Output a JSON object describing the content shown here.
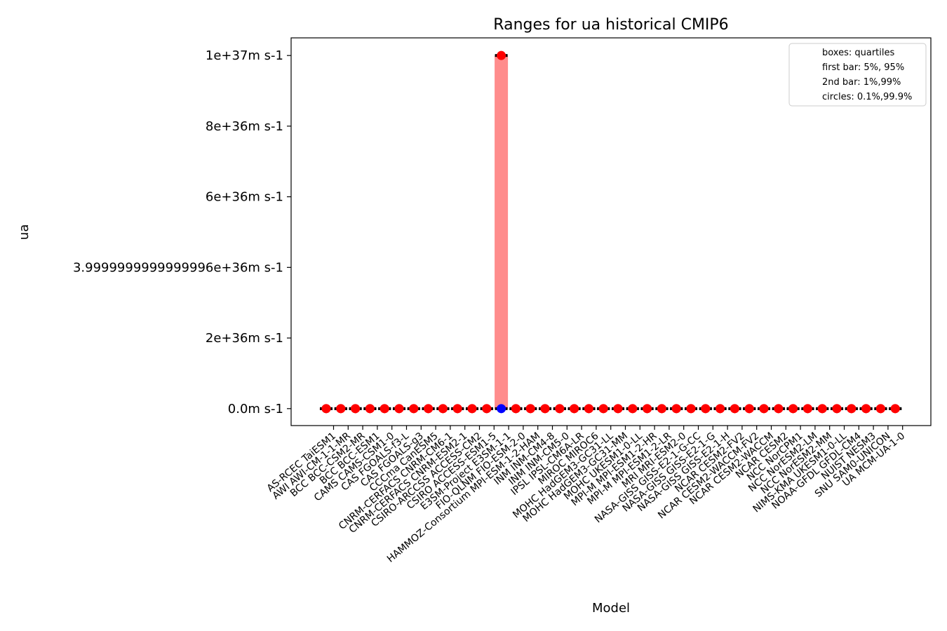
{
  "chart_data": {
    "type": "box",
    "title": "Ranges for ua historical CMIP6",
    "xlabel": "Model",
    "ylabel": "ua",
    "ylim": [
      -4.8e+35,
      1.05e+37
    ],
    "yticks": [
      {
        "value": 0,
        "label": "0.0m s-1"
      },
      {
        "value": 2e+36,
        "label": "2e+36m s-1"
      },
      {
        "value": 3.9999999999999996e+36,
        "label": "3.9999999999999996e+36m s-1"
      },
      {
        "value": 6e+36,
        "label": "6e+36m s-1"
      },
      {
        "value": 8e+36,
        "label": "8e+36m s-1"
      },
      {
        "value": 1e+37,
        "label": "1e+37m s-1"
      }
    ],
    "legend": {
      "placement": "top-right",
      "entries": [
        "boxes: quartiles",
        "first bar: 5%, 95%",
        "2nd bar: 1%,99%",
        "circles: 0.1%,99.9%"
      ]
    },
    "colors": {
      "box": "#ff8c8c",
      "circle": "#ff0000",
      "outlier_low": "#0000ff",
      "bar": "#000000"
    },
    "categories": [
      "AS-RCEC TaiESM1",
      "AWI AWI-CM-1-1-MR",
      "BCC BCC-CSM2-MR",
      "BCC BCC-ESM1",
      "CAMS CAMS-CSM1-0",
      "CAS FGOALS-f3-L",
      "CAS FGOALS-g3",
      "CCCma CanESM5",
      "CNRM-CERFACS CNRM-CM6-1",
      "CNRM-CERFACS CNRM-ESM2-1",
      "CSIRO-ARCCSS ACCESS-CM2",
      "CSIRO ACCESS-ESM1-5",
      "E3SM-Project E3SM-1-1",
      "FIO-QLNM FIO-ESM-2-0",
      "HAMMOZ-Consortium MPI-ESM-1-2-HAM",
      "INM INM-CM4-8",
      "INM INM-CM5-0",
      "IPSL IPSL-CM6A-LR",
      "MIROC MIROC6",
      "MOHC HadGEM3-GC31-LL",
      "MOHC HadGEM3-GC31-MM",
      "MOHC UKESM1-0-LL",
      "MPI-M MPI-ESM1-2-HR",
      "MPI-M MPI-ESM1-2-LR",
      "MRI MRI-ESM2-0",
      "NASA-GISS GISS-E2-1-G-CC",
      "NASA-GISS GISS-E2-1-G",
      "NASA-GISS GISS-E2-1-H",
      "NCAR CESM2-FV2",
      "NCAR CESM2-WACCM-FV2",
      "NCAR CESM2-WACCM",
      "NCAR CESM2",
      "NCC NorCPM1",
      "NCC NorESM2-LM",
      "NCC NorESM2-MM",
      "NIMS-KMA UKESM1-0-LL",
      "NOAA-GFDL GFDL-CM4",
      "NUIST NESM3",
      "SNU SAM0-UNICON",
      "UA MCM-UA-1-0"
    ],
    "series": [
      {
        "category": "AS-RCEC TaiESM1",
        "q1": 0,
        "q3": 0,
        "circle_low": 0,
        "circle_high": 0
      },
      {
        "category": "AWI AWI-CM-1-1-MR",
        "q1": 0,
        "q3": 0,
        "circle_low": 0,
        "circle_high": 0
      },
      {
        "category": "BCC BCC-CSM2-MR",
        "q1": 0,
        "q3": 0,
        "circle_low": 0,
        "circle_high": 0
      },
      {
        "category": "BCC BCC-ESM1",
        "q1": 0,
        "q3": 0,
        "circle_low": 0,
        "circle_high": 0
      },
      {
        "category": "CAMS CAMS-CSM1-0",
        "q1": 0,
        "q3": 0,
        "circle_low": 0,
        "circle_high": 0
      },
      {
        "category": "CAS FGOALS-f3-L",
        "q1": 0,
        "q3": 0,
        "circle_low": 0,
        "circle_high": 0
      },
      {
        "category": "CAS FGOALS-g3",
        "q1": 0,
        "q3": 0,
        "circle_low": 0,
        "circle_high": 0
      },
      {
        "category": "CCCma CanESM5",
        "q1": 0,
        "q3": 0,
        "circle_low": 0,
        "circle_high": 0
      },
      {
        "category": "CNRM-CERFACS CNRM-CM6-1",
        "q1": 0,
        "q3": 0,
        "circle_low": 0,
        "circle_high": 0
      },
      {
        "category": "CNRM-CERFACS CNRM-ESM2-1",
        "q1": 0,
        "q3": 0,
        "circle_low": 0,
        "circle_high": 0
      },
      {
        "category": "CSIRO-ARCCSS ACCESS-CM2",
        "q1": 0,
        "q3": 0,
        "circle_low": 0,
        "circle_high": 0
      },
      {
        "category": "CSIRO ACCESS-ESM1-5",
        "q1": 0,
        "q3": 0,
        "circle_low": 0,
        "circle_high": 0
      },
      {
        "category": "E3SM-Project E3SM-1-1",
        "q1": 0,
        "q3": 1e+37,
        "circle_low": 0,
        "circle_high": 1e+37
      },
      {
        "category": "FIO-QLNM FIO-ESM-2-0",
        "q1": 0,
        "q3": 0,
        "circle_low": 0,
        "circle_high": 0
      },
      {
        "category": "HAMMOZ-Consortium MPI-ESM-1-2-HAM",
        "q1": 0,
        "q3": 0,
        "circle_low": 0,
        "circle_high": 0
      },
      {
        "category": "INM INM-CM4-8",
        "q1": 0,
        "q3": 0,
        "circle_low": 0,
        "circle_high": 0
      },
      {
        "category": "INM INM-CM5-0",
        "q1": 0,
        "q3": 0,
        "circle_low": 0,
        "circle_high": 0
      },
      {
        "category": "IPSL IPSL-CM6A-LR",
        "q1": 0,
        "q3": 0,
        "circle_low": 0,
        "circle_high": 0
      },
      {
        "category": "MIROC MIROC6",
        "q1": 0,
        "q3": 0,
        "circle_low": 0,
        "circle_high": 0
      },
      {
        "category": "MOHC HadGEM3-GC31-LL",
        "q1": 0,
        "q3": 0,
        "circle_low": 0,
        "circle_high": 0
      },
      {
        "category": "MOHC HadGEM3-GC31-MM",
        "q1": 0,
        "q3": 0,
        "circle_low": 0,
        "circle_high": 0
      },
      {
        "category": "MOHC UKESM1-0-LL",
        "q1": 0,
        "q3": 0,
        "circle_low": 0,
        "circle_high": 0
      },
      {
        "category": "MPI-M MPI-ESM1-2-HR",
        "q1": 0,
        "q3": 0,
        "circle_low": 0,
        "circle_high": 0
      },
      {
        "category": "MPI-M MPI-ESM1-2-LR",
        "q1": 0,
        "q3": 0,
        "circle_low": 0,
        "circle_high": 0
      },
      {
        "category": "MRI MRI-ESM2-0",
        "q1": 0,
        "q3": 0,
        "circle_low": 0,
        "circle_high": 0
      },
      {
        "category": "NASA-GISS GISS-E2-1-G-CC",
        "q1": 0,
        "q3": 0,
        "circle_low": 0,
        "circle_high": 0
      },
      {
        "category": "NASA-GISS GISS-E2-1-G",
        "q1": 0,
        "q3": 0,
        "circle_low": 0,
        "circle_high": 0
      },
      {
        "category": "NASA-GISS GISS-E2-1-H",
        "q1": 0,
        "q3": 0,
        "circle_low": 0,
        "circle_high": 0
      },
      {
        "category": "NCAR CESM2-FV2",
        "q1": 0,
        "q3": 0,
        "circle_low": 0,
        "circle_high": 0
      },
      {
        "category": "NCAR CESM2-WACCM-FV2",
        "q1": 0,
        "q3": 0,
        "circle_low": 0,
        "circle_high": 0
      },
      {
        "category": "NCAR CESM2-WACCM",
        "q1": 0,
        "q3": 0,
        "circle_low": 0,
        "circle_high": 0
      },
      {
        "category": "NCAR CESM2",
        "q1": 0,
        "q3": 0,
        "circle_low": 0,
        "circle_high": 0
      },
      {
        "category": "NCC NorCPM1",
        "q1": 0,
        "q3": 0,
        "circle_low": 0,
        "circle_high": 0
      },
      {
        "category": "NCC NorESM2-LM",
        "q1": 0,
        "q3": 0,
        "circle_low": 0,
        "circle_high": 0
      },
      {
        "category": "NCC NorESM2-MM",
        "q1": 0,
        "q3": 0,
        "circle_low": 0,
        "circle_high": 0
      },
      {
        "category": "NIMS-KMA UKESM1-0-LL",
        "q1": 0,
        "q3": 0,
        "circle_low": 0,
        "circle_high": 0
      },
      {
        "category": "NOAA-GFDL GFDL-CM4",
        "q1": 0,
        "q3": 0,
        "circle_low": 0,
        "circle_high": 0
      },
      {
        "category": "NUIST NESM3",
        "q1": 0,
        "q3": 0,
        "circle_low": 0,
        "circle_high": 0
      },
      {
        "category": "SNU SAM0-UNICON",
        "q1": 0,
        "q3": 0,
        "circle_low": 0,
        "circle_high": 0
      },
      {
        "category": "UA MCM-UA-1-0",
        "q1": 0,
        "q3": 0,
        "circle_low": 0,
        "circle_high": 0
      }
    ]
  }
}
